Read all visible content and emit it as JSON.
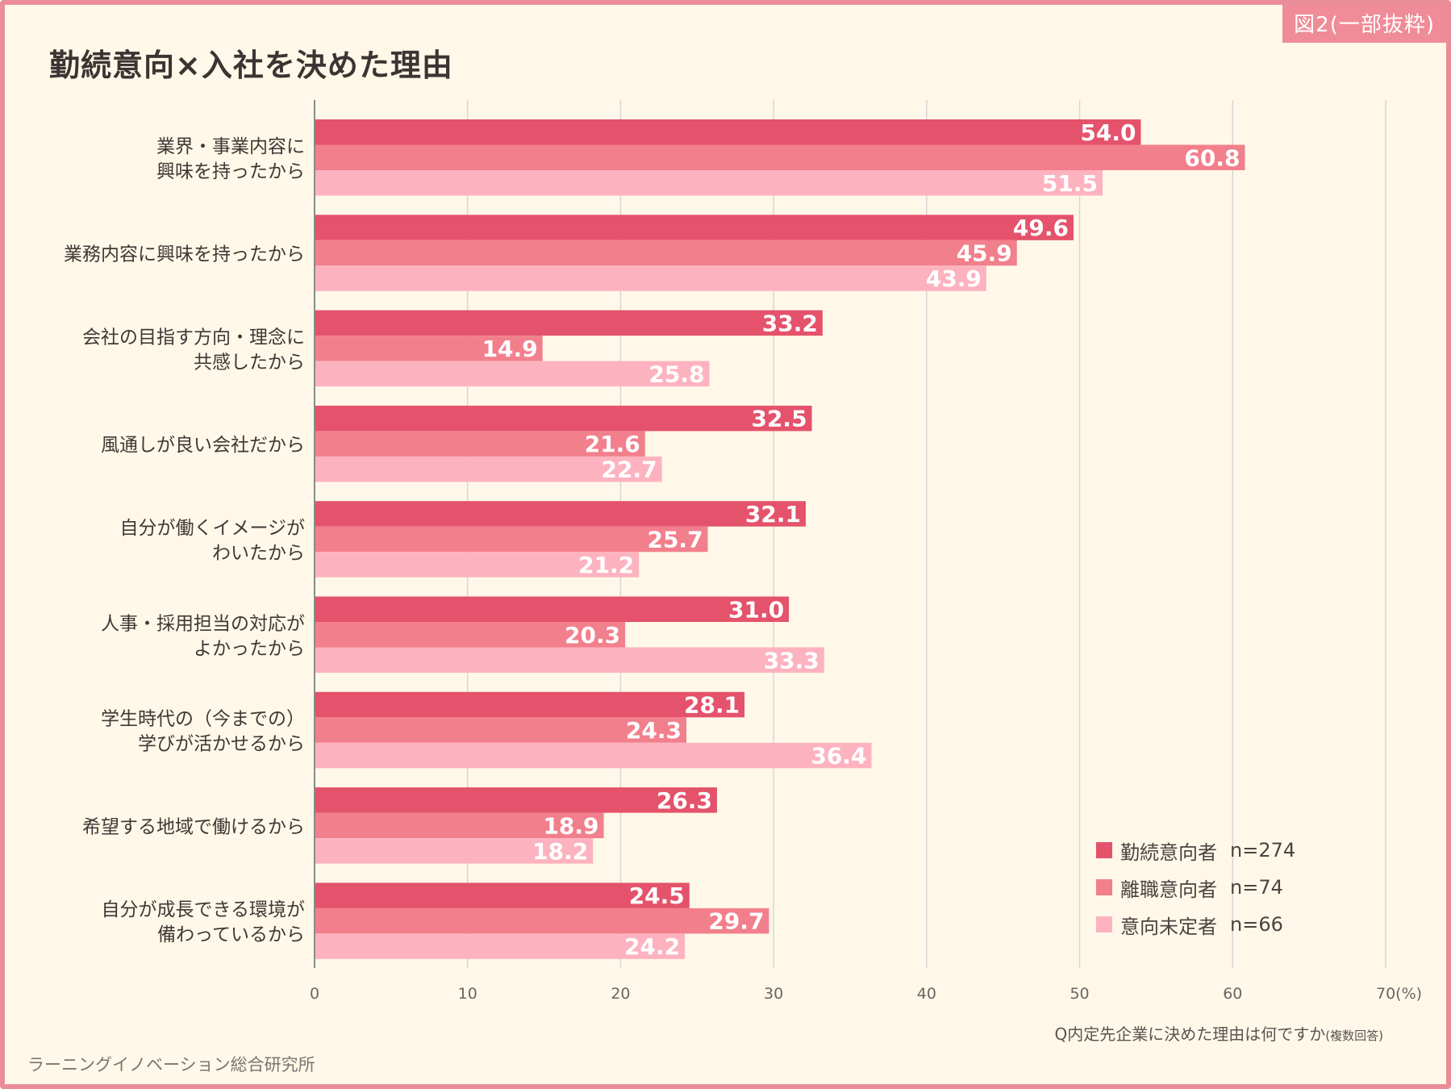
{
  "figure_label": "図2(一部抜粋)",
  "source": "ラーニングイノベーション総合研究所",
  "question": "Q内定先企業に決めた理由は何ですか",
  "question_note": "(複数回答)",
  "colors": {
    "series1": "#e4526b",
    "series2": "#f27f8c",
    "series3": "#fdb3bf",
    "background": "#fff8e8",
    "grid": "#d6d6d6",
    "border": "#ea8d98"
  },
  "chart_data": {
    "type": "bar",
    "orientation": "horizontal",
    "title": "勤続意向×入社を決めた理由",
    "categories": [
      [
        "業界・事業内容に",
        "興味を持ったから"
      ],
      [
        "業務内容に興味を持ったから"
      ],
      [
        "会社の目指す方向・理念に",
        "共感したから"
      ],
      [
        "風通しが良い会社だから"
      ],
      [
        "自分が働くイメージが",
        "わいたから"
      ],
      [
        "人事・採用担当の対応が",
        "よかったから"
      ],
      [
        "学生時代の（今までの）",
        "学びが活かせるから"
      ],
      [
        "希望する地域で働けるから"
      ],
      [
        "自分が成長できる環境が",
        "備わっているから"
      ]
    ],
    "series": [
      {
        "name": "勤続意向者",
        "n": "n=274",
        "values": [
          54.0,
          49.6,
          33.2,
          32.5,
          32.1,
          31.0,
          28.1,
          26.3,
          24.5
        ]
      },
      {
        "name": "離職意向者",
        "n": "n=74",
        "values": [
          60.8,
          45.9,
          14.9,
          21.6,
          25.7,
          20.3,
          24.3,
          18.9,
          29.7
        ]
      },
      {
        "name": "意向未定者",
        "n": "n=66",
        "values": [
          51.5,
          43.9,
          25.8,
          22.7,
          21.2,
          33.3,
          36.4,
          18.2,
          24.2
        ]
      }
    ],
    "xlim": [
      0,
      70
    ],
    "xticks": [
      0,
      10,
      20,
      30,
      40,
      50,
      60,
      70
    ],
    "xunit": "(%)",
    "grid": true,
    "legend_position": "bottom-right"
  }
}
